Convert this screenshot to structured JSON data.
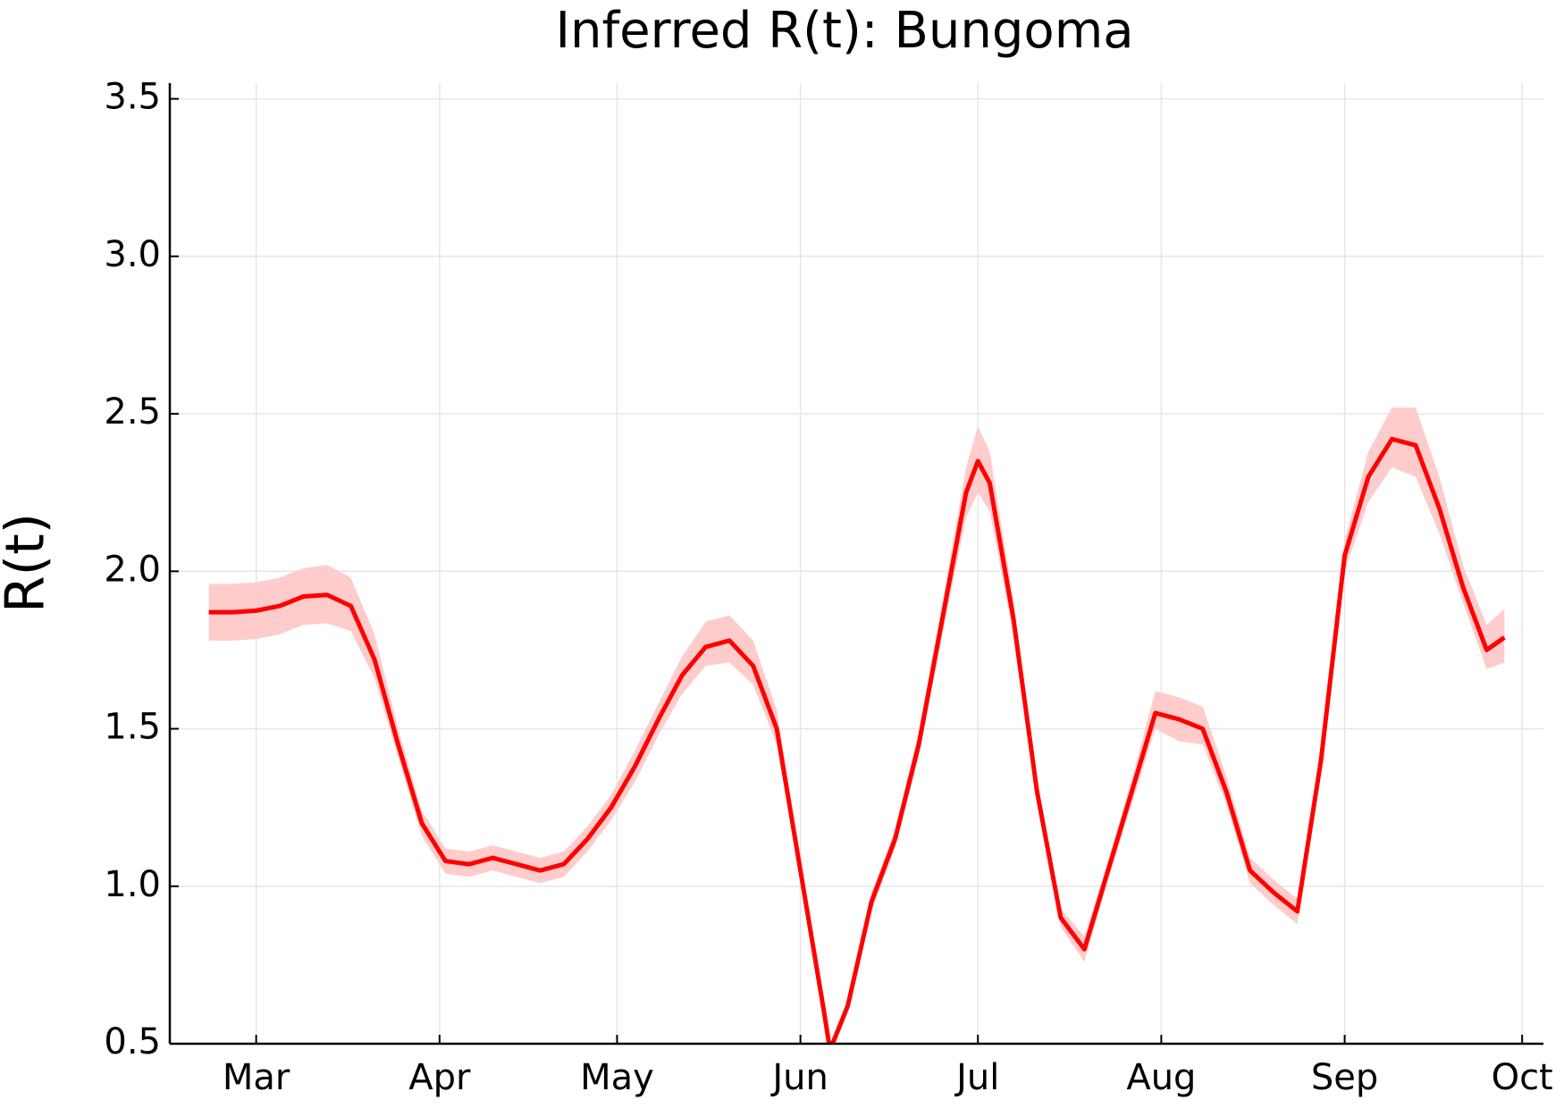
{
  "chart_data": {
    "type": "line",
    "title": "Inferred R(t): Bungoma",
    "ylabel": "R(t)",
    "x": [
      -8,
      -4,
      0,
      4,
      8,
      12,
      16,
      20,
      24,
      28,
      32,
      36,
      40,
      44,
      48,
      52,
      56,
      60,
      64,
      68,
      72,
      76,
      80,
      84,
      88,
      92,
      96,
      97,
      100,
      104,
      108,
      112,
      116,
      120,
      122,
      124,
      128,
      132,
      136,
      140,
      144,
      148,
      152,
      156,
      160,
      164,
      168,
      172,
      176,
      180,
      184,
      188,
      192,
      196,
      200,
      204,
      208,
      211
    ],
    "values": [
      1.87,
      1.87,
      1.875,
      1.89,
      1.92,
      1.925,
      1.89,
      1.72,
      1.45,
      1.2,
      1.08,
      1.07,
      1.09,
      1.07,
      1.05,
      1.07,
      1.15,
      1.25,
      1.38,
      1.53,
      1.67,
      1.76,
      1.78,
      1.7,
      1.5,
      1.05,
      0.6,
      0.48,
      0.62,
      0.95,
      1.15,
      1.45,
      1.85,
      2.25,
      2.35,
      2.28,
      1.85,
      1.3,
      0.9,
      0.8,
      1.05,
      1.3,
      1.55,
      1.53,
      1.5,
      1.3,
      1.05,
      0.98,
      0.92,
      1.4,
      2.05,
      2.3,
      2.42,
      2.4,
      2.2,
      1.95,
      1.75,
      1.79
    ],
    "lower": [
      1.78,
      1.78,
      1.785,
      1.8,
      1.83,
      1.835,
      1.81,
      1.66,
      1.41,
      1.16,
      1.04,
      1.03,
      1.05,
      1.03,
      1.01,
      1.03,
      1.11,
      1.21,
      1.33,
      1.48,
      1.61,
      1.7,
      1.71,
      1.64,
      1.45,
      1.02,
      0.58,
      0.46,
      0.6,
      0.92,
      1.12,
      1.41,
      1.8,
      2.17,
      2.25,
      2.19,
      1.8,
      1.27,
      0.87,
      0.76,
      1.02,
      1.26,
      1.5,
      1.46,
      1.45,
      1.26,
      1.01,
      0.94,
      0.88,
      1.36,
      2.0,
      2.22,
      2.33,
      2.3,
      2.12,
      1.9,
      1.69,
      1.71
    ],
    "upper": [
      1.96,
      1.96,
      1.965,
      1.98,
      2.01,
      2.02,
      1.98,
      1.8,
      1.5,
      1.24,
      1.12,
      1.11,
      1.13,
      1.11,
      1.09,
      1.11,
      1.19,
      1.29,
      1.43,
      1.58,
      1.73,
      1.84,
      1.86,
      1.78,
      1.56,
      1.08,
      0.62,
      0.5,
      0.64,
      0.98,
      1.18,
      1.49,
      1.9,
      2.33,
      2.46,
      2.38,
      1.91,
      1.34,
      0.93,
      0.84,
      1.08,
      1.34,
      1.62,
      1.6,
      1.57,
      1.35,
      1.09,
      1.02,
      0.96,
      1.44,
      2.1,
      2.38,
      2.52,
      2.52,
      2.3,
      2.02,
      1.83,
      1.88
    ],
    "color": "#ff0000",
    "band_color": "#ffcccc",
    "xlim": [
      -14.6,
      217.6
    ],
    "xticks": [
      {
        "value": 0,
        "label": "Mar"
      },
      {
        "value": 31,
        "label": "Apr"
      },
      {
        "value": 61,
        "label": "May"
      },
      {
        "value": 92,
        "label": "Jun"
      },
      {
        "value": 122,
        "label": "Jul"
      },
      {
        "value": 153,
        "label": "Aug"
      },
      {
        "value": 184,
        "label": "Sep"
      },
      {
        "value": 214,
        "label": "Oct"
      }
    ],
    "ylim": [
      0.5,
      3.55
    ],
    "yticks": [
      {
        "value": 0.5,
        "label": "0.5"
      },
      {
        "value": 1,
        "label": "1.0"
      },
      {
        "value": 1.5,
        "label": "1.5"
      },
      {
        "value": 2,
        "label": "2.0"
      },
      {
        "value": 2.5,
        "label": "2.5"
      },
      {
        "value": 3,
        "label": "3.0"
      },
      {
        "value": 3.5,
        "label": "3.5"
      }
    ],
    "grid": true
  }
}
